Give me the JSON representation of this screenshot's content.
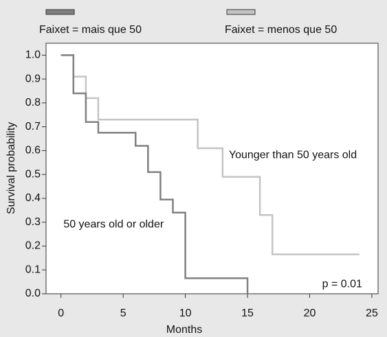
{
  "chart_data": {
    "type": "line",
    "step": "post",
    "x_label": "Months",
    "y_label": "Survival probability",
    "xlim": [
      -1.2,
      25.5
    ],
    "ylim": [
      0,
      1.05
    ],
    "xticks": [
      0,
      5,
      10,
      15,
      20,
      25
    ],
    "yticks": [
      {
        "value": 1.0,
        "label": "1.0"
      },
      0.9,
      0.8,
      0.7,
      0.6,
      0.5,
      0.4,
      0.3,
      0.2,
      0.1,
      {
        "value": 0,
        "label": "0.0"
      }
    ],
    "series": [
      {
        "name": "Faixet = mais que 50",
        "color": "#808080",
        "x": [
          0,
          1,
          2,
          3,
          6,
          7,
          8,
          9,
          10,
          15
        ],
        "values": [
          1.0,
          0.84,
          0.72,
          0.675,
          0.62,
          0.51,
          0.395,
          0.34,
          0.065,
          0.0
        ]
      },
      {
        "name": "Faixet = menos que 50",
        "color": "#c4c4c4",
        "x": [
          0,
          1,
          2,
          3,
          11,
          13,
          16,
          17,
          24
        ],
        "values": [
          1.0,
          0.91,
          0.82,
          0.73,
          0.61,
          0.49,
          0.33,
          0.165,
          0.165
        ]
      }
    ],
    "annotations": [
      {
        "text": "Younger than 50 years old",
        "x": 13.5,
        "y": 0.58
      },
      {
        "text": "50 years old or older",
        "x": 0.2,
        "y": 0.29
      },
      {
        "text": "p = 0.01",
        "x": 21,
        "y": 0.04
      }
    ]
  }
}
